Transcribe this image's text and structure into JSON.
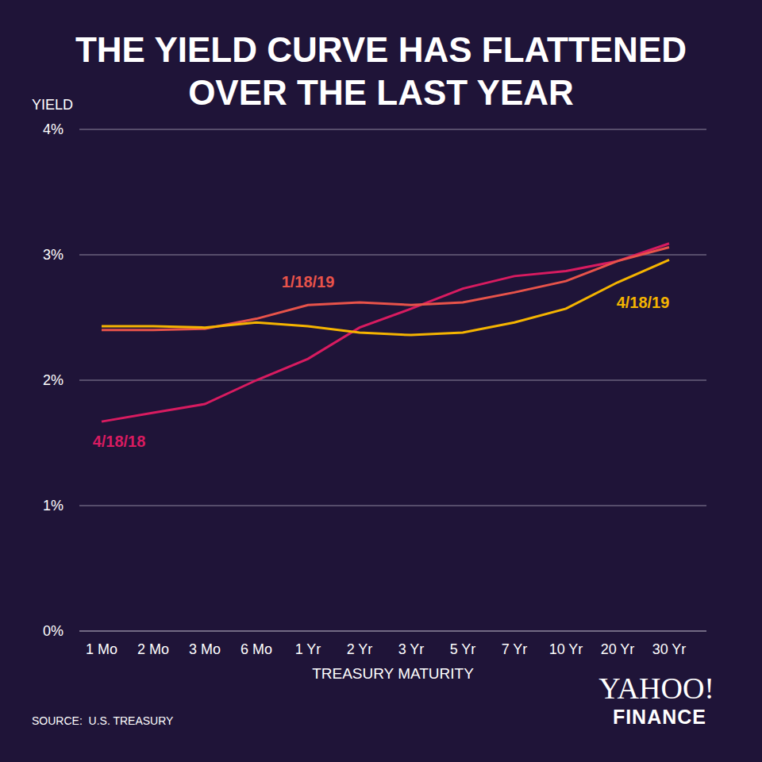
{
  "chart_data": {
    "type": "line",
    "title": "THE YIELD CURVE HAS FLATTENED OVER THE LAST YEAR",
    "y_label": "YIELD",
    "x_label": "TREASURY MATURITY",
    "source": "SOURCE:  U.S. TREASURY",
    "logo": {
      "text": "YAHOO!",
      "subtext": "FINANCE"
    },
    "categories": [
      "1 Mo",
      "2 Mo",
      "3 Mo",
      "6 Mo",
      "1 Yr",
      "2 Yr",
      "3 Yr",
      "5 Yr",
      "7 Yr",
      "10 Yr",
      "20 Yr",
      "30 Yr"
    ],
    "series": [
      {
        "name": "4/18/18",
        "color": "#d81b60",
        "values": [
          1.67,
          1.74,
          1.81,
          2.0,
          2.17,
          2.42,
          2.57,
          2.73,
          2.83,
          2.87,
          2.95,
          3.09
        ]
      },
      {
        "name": "1/18/19",
        "color": "#e8534a",
        "values": [
          2.4,
          2.4,
          2.41,
          2.49,
          2.6,
          2.62,
          2.6,
          2.62,
          2.7,
          2.79,
          2.95,
          3.06
        ]
      },
      {
        "name": "4/18/19",
        "color": "#f5b400",
        "values": [
          2.43,
          2.43,
          2.42,
          2.46,
          2.43,
          2.38,
          2.36,
          2.38,
          2.46,
          2.57,
          2.78,
          2.96
        ]
      }
    ],
    "ylim": [
      0,
      4
    ],
    "yticks": [
      {
        "value": 0,
        "label": "0%"
      },
      {
        "value": 1,
        "label": "1%"
      },
      {
        "value": 2,
        "label": "2%"
      },
      {
        "value": 3,
        "label": "3%"
      },
      {
        "value": 4,
        "label": "4%"
      }
    ],
    "grid": true
  }
}
